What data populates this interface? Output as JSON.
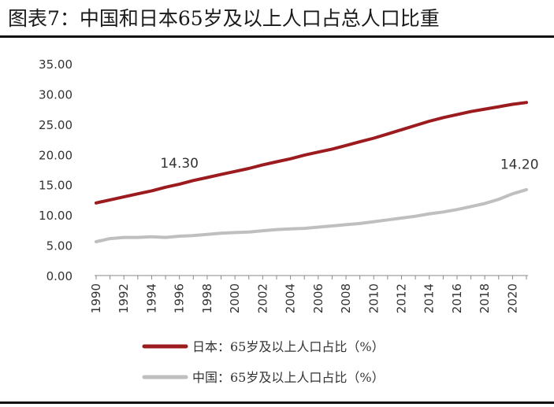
{
  "title": "图表7：中国和日本65岁及以上人口占总人口比重",
  "chart_data": {
    "type": "line",
    "title": "",
    "xlabel": "",
    "ylabel": "",
    "ylim": [
      0,
      35
    ],
    "y_ticks": [
      "0.00",
      "5.00",
      "10.00",
      "15.00",
      "20.00",
      "25.00",
      "30.00",
      "35.00"
    ],
    "x_ticks": [
      "1990",
      "1992",
      "1994",
      "1996",
      "1998",
      "2000",
      "2002",
      "2004",
      "2006",
      "2008",
      "2010",
      "2012",
      "2014",
      "2016",
      "2018",
      "2020"
    ],
    "x": [
      1990,
      1991,
      1992,
      1993,
      1994,
      1995,
      1996,
      1997,
      1998,
      1999,
      2000,
      2001,
      2002,
      2003,
      2004,
      2005,
      2006,
      2007,
      2008,
      2009,
      2010,
      2011,
      2012,
      2013,
      2014,
      2015,
      2016,
      2017,
      2018,
      2019,
      2020,
      2021
    ],
    "grid": false,
    "legend_position": "bottom",
    "series": [
      {
        "name": "日本：65岁及以上人口占比（%）",
        "color": "#9b1b1f",
        "values": [
          12.0,
          12.5,
          13.0,
          13.5,
          14.0,
          14.6,
          15.1,
          15.7,
          16.2,
          16.7,
          17.2,
          17.7,
          18.3,
          18.8,
          19.3,
          19.9,
          20.4,
          20.9,
          21.5,
          22.1,
          22.7,
          23.4,
          24.1,
          24.8,
          25.5,
          26.1,
          26.6,
          27.1,
          27.5,
          27.9,
          28.3,
          28.6
        ]
      },
      {
        "name": "中国：65岁及以上人口占比（%）",
        "color": "#bfbfbf",
        "values": [
          5.6,
          6.1,
          6.3,
          6.3,
          6.4,
          6.3,
          6.5,
          6.6,
          6.8,
          7.0,
          7.1,
          7.2,
          7.4,
          7.6,
          7.7,
          7.8,
          8.0,
          8.2,
          8.4,
          8.6,
          8.9,
          9.2,
          9.5,
          9.8,
          10.2,
          10.5,
          10.9,
          11.4,
          11.9,
          12.6,
          13.5,
          14.2
        ]
      }
    ],
    "annotations": [
      {
        "text": "14.30",
        "x": 1996,
        "y": 17.8
      },
      {
        "text": "14.20",
        "x": 2020.5,
        "y": 17.6
      }
    ]
  }
}
